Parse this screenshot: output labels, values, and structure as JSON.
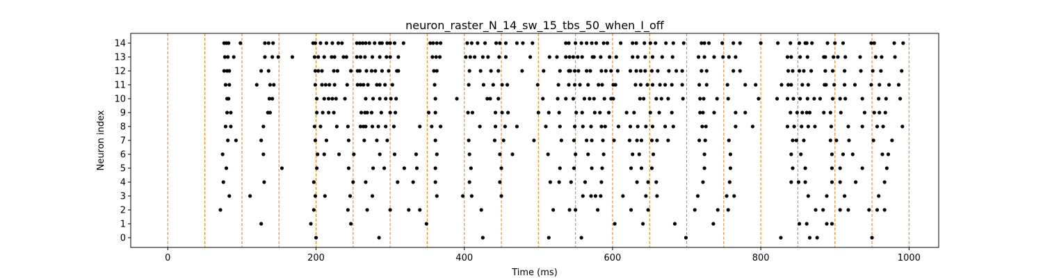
{
  "chart_data": {
    "type": "scatter",
    "title": "neuron_raster_N_14_sw_15_tbs_50_when_I_off",
    "xlabel": "Time (ms)",
    "ylabel": "Neuron index",
    "xlim": [
      -50,
      1040
    ],
    "ylim": [
      -0.7,
      14.7
    ],
    "xticks": [
      0,
      200,
      400,
      600,
      800,
      1000
    ],
    "yticks": [
      0,
      1,
      2,
      3,
      4,
      5,
      6,
      7,
      8,
      9,
      10,
      11,
      12,
      13,
      14
    ],
    "grid": false,
    "marker_color": "#000000",
    "vline_color": "#ff7f0e",
    "vlines": [
      0,
      50,
      100,
      150,
      200,
      250,
      300,
      350,
      400,
      450,
      500,
      550,
      600,
      650,
      700,
      750,
      800,
      850,
      900,
      950,
      1000
    ],
    "series": [
      {
        "neuron": 14,
        "spikes": [
          76,
          79,
          82,
          98,
          131,
          136,
          142,
          196,
          199,
          206,
          214,
          222,
          230,
          235,
          255,
          259,
          263,
          267,
          272,
          279,
          286,
          289,
          296,
          300,
          306,
          318,
          354,
          358,
          363,
          368,
          404,
          410,
          418,
          428,
          443,
          448,
          456,
          471,
          479,
          492,
          537,
          541,
          550,
          558,
          565,
          572,
          578,
          588,
          593,
          611,
          627,
          632,
          643,
          651,
          658,
          672,
          682,
          696,
          720,
          724,
          730,
          748,
          763,
          772,
          800,
          823,
          840,
          852,
          860,
          862,
          869,
          890,
          900,
          911,
          949,
          953,
          980,
          992
        ]
      },
      {
        "neuron": 13,
        "spikes": [
          77,
          81,
          89,
          131,
          141,
          149,
          168,
          198,
          203,
          211,
          221,
          225,
          237,
          241,
          255,
          260,
          266,
          276,
          286,
          295,
          300,
          311,
          357,
          362,
          367,
          402,
          408,
          414,
          425,
          432,
          447,
          456,
          489,
          515,
          525,
          537,
          542,
          547,
          553,
          559,
          573,
          575,
          584,
          596,
          605,
          627,
          634,
          644,
          654,
          667,
          681,
          716,
          724,
          737,
          749,
          757,
          766,
          836,
          841,
          853,
          863,
          885,
          887,
          898,
          904,
          914,
          934,
          955,
          963,
          981
        ]
      },
      {
        "neuron": 12,
        "spikes": [
          76,
          80,
          83,
          126,
          136,
          199,
          203,
          208,
          224,
          229,
          247,
          256,
          259,
          268,
          275,
          280,
          289,
          298,
          309,
          311,
          359,
          363,
          407,
          422,
          436,
          446,
          478,
          507,
          529,
          541,
          543,
          549,
          554,
          565,
          570,
          585,
          591,
          598,
          607,
          624,
          632,
          638,
          644,
          653,
          661,
          676,
          686,
          694,
          720,
          727,
          763,
          772,
          837,
          843,
          852,
          858,
          868,
          887,
          897,
          913,
          935,
          951,
          962,
          990
        ]
      },
      {
        "neuron": 11,
        "spikes": [
          78,
          83,
          120,
          138,
          143,
          199,
          208,
          213,
          218,
          225,
          242,
          256,
          260,
          264,
          270,
          282,
          286,
          293,
          303,
          360,
          406,
          426,
          439,
          451,
          458,
          499,
          527,
          541,
          549,
          556,
          567,
          581,
          586,
          601,
          604,
          631,
          638,
          647,
          654,
          664,
          671,
          680,
          694,
          717,
          727,
          755,
          779,
          793,
          828,
          837,
          841,
          856,
          864,
          886,
          888,
          899,
          913,
          927,
          949,
          960,
          973,
          986
        ]
      },
      {
        "neuron": 10,
        "spikes": [
          80,
          82,
          137,
          141,
          201,
          211,
          217,
          222,
          227,
          239,
          267,
          277,
          286,
          294,
          301,
          308,
          361,
          390,
          431,
          435,
          446,
          506,
          526,
          537,
          547,
          562,
          569,
          575,
          589,
          598,
          601,
          637,
          642,
          659,
          666,
          675,
          695,
          718,
          723,
          741,
          756,
          797,
          822,
          836,
          844,
          853,
          863,
          872,
          880,
          897,
          907,
          914,
          937,
          959,
          969,
          988
        ]
      },
      {
        "neuron": 9,
        "spikes": [
          80,
          85,
          135,
          138,
          201,
          209,
          217,
          224,
          261,
          266,
          269,
          275,
          288,
          300,
          307,
          352,
          361,
          405,
          411,
          442,
          451,
          459,
          500,
          514,
          528,
          551,
          559,
          576,
          583,
          595,
          619,
          629,
          651,
          663,
          680,
          718,
          722,
          737,
          766,
          779,
          840,
          849,
          856,
          862,
          866,
          885,
          894,
          908,
          940,
          953,
          960,
          968
        ]
      },
      {
        "neuron": 8,
        "spikes": [
          78,
          85,
          129,
          198,
          206,
          228,
          243,
          260,
          264,
          267,
          276,
          284,
          294,
          305,
          340,
          356,
          368,
          421,
          442,
          455,
          471,
          510,
          529,
          549,
          560,
          571,
          585,
          590,
          608,
          624,
          634,
          645,
          654,
          671,
          682,
          721,
          726,
          766,
          789,
          836,
          845,
          855,
          864,
          873,
          895,
          918,
          937,
          957,
          965,
          991
        ]
      },
      {
        "neuron": 7,
        "spikes": [
          81,
          92,
          126,
          199,
          214,
          244,
          265,
          282,
          296,
          361,
          406,
          441,
          453,
          494,
          531,
          548,
          565,
          572,
          587,
          602,
          623,
          633,
          639,
          653,
          660,
          675,
          717,
          725,
          757,
          843,
          848,
          858,
          894,
          902,
          919,
          952,
          977
        ]
      },
      {
        "neuron": 6,
        "spikes": [
          74,
          129,
          202,
          211,
          231,
          251,
          286,
          306,
          335,
          363,
          407,
          448,
          465,
          513,
          550,
          567,
          588,
          627,
          636,
          655,
          724,
          759,
          841,
          854,
          896,
          911,
          924,
          964,
          972
        ]
      },
      {
        "neuron": 5,
        "spikes": [
          79,
          154,
          201,
          244,
          277,
          292,
          319,
          336,
          361,
          409,
          450,
          529,
          548,
          572,
          586,
          625,
          639,
          653,
          724,
          759,
          843,
          860,
          896,
          907,
          937,
          970
        ]
      },
      {
        "neuron": 4,
        "spikes": [
          75,
          130,
          197,
          250,
          267,
          310,
          331,
          361,
          407,
          448,
          516,
          528,
          544,
          563,
          585,
          633,
          648,
          659,
          722,
          758,
          841,
          851,
          860,
          896,
          907,
          928,
          967
        ]
      },
      {
        "neuron": 3,
        "spikes": [
          83,
          111,
          199,
          212,
          246,
          276,
          363,
          398,
          410,
          450,
          560,
          571,
          577,
          584,
          614,
          645,
          660,
          715,
          754,
          764,
          864,
          889,
          913,
          959
        ]
      },
      {
        "neuron": 2,
        "spikes": [
          71,
          197,
          243,
          269,
          300,
          325,
          340,
          423,
          520,
          542,
          550,
          580,
          625,
          648,
          711,
          742,
          756,
          874,
          884,
          907,
          918,
          946,
          957,
          967
        ]
      },
      {
        "neuron": 1,
        "spikes": [
          126,
          193,
          247,
          349,
          603,
          641,
          684,
          736,
          852,
          862,
          889,
          896
        ]
      },
      {
        "neuron": 0,
        "spikes": [
          200,
          285,
          425,
          514,
          558,
          699,
          827,
          866,
          876,
          950
        ]
      }
    ]
  }
}
